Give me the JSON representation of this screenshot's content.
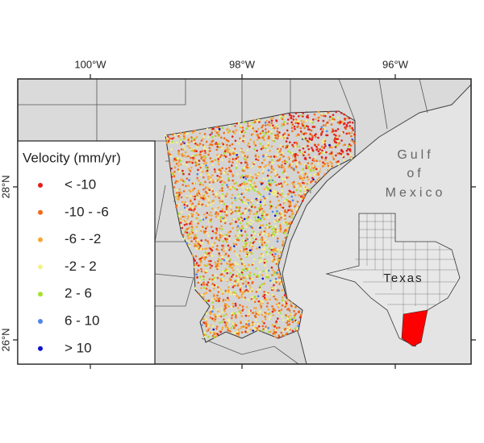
{
  "map": {
    "x_axis_labels": [
      "100°W",
      "98°W",
      "96°W"
    ],
    "y_axis_labels": [
      "28°N",
      "26°N"
    ],
    "legend": {
      "title": "Velocity (mm/yr)",
      "items": [
        {
          "label": "< -10",
          "color": "#e3201c"
        },
        {
          "label": "-10 -  -6",
          "color": "#f06a1a"
        },
        {
          "label": "-6 - -2",
          "color": "#f5a83a"
        },
        {
          "label": "-2 - 2",
          "color": "#f2f28a"
        },
        {
          "label": "2 - 6",
          "color": "#a6e22a"
        },
        {
          "label": "6 - 10",
          "color": "#4d86e8"
        },
        {
          "label": "> 10",
          "color": "#1010d0"
        }
      ]
    },
    "gulf_label": [
      "Gulf",
      "of",
      "Mexico"
    ],
    "inset_label": "Texas"
  }
}
